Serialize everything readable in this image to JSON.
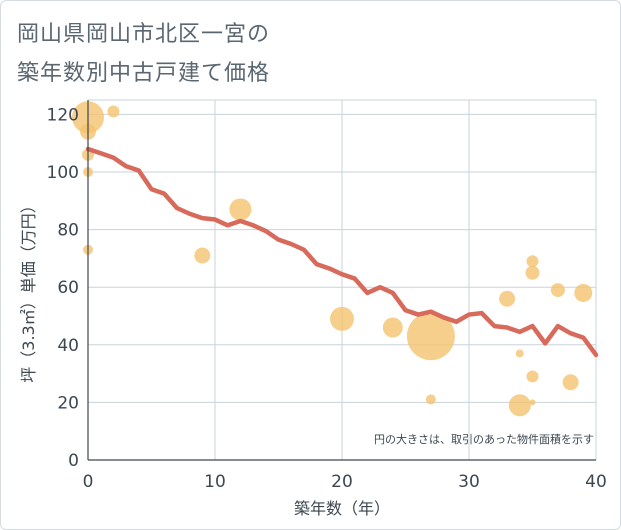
{
  "title_line1": "岡山県岡山市北区一宮の",
  "title_line2": "築年数別中古戸建て価格",
  "chart_data": {
    "type": "scatter",
    "xlabel": "築年数（年）",
    "ylabel": "坪（3.3㎡）単価（万円）",
    "xlim": [
      0,
      40
    ],
    "ylim": [
      0,
      125
    ],
    "xticks": [
      0,
      10,
      20,
      30,
      40
    ],
    "yticks": [
      0,
      20,
      40,
      60,
      80,
      100,
      120
    ],
    "grid": true,
    "note": "円の大きさは、取引のあった物件面積を示す",
    "bubbles": [
      {
        "x": 0,
        "y": 119,
        "r": 16
      },
      {
        "x": 0,
        "y": 114,
        "r": 8
      },
      {
        "x": 0,
        "y": 106,
        "r": 6
      },
      {
        "x": 0,
        "y": 100,
        "r": 5
      },
      {
        "x": 0,
        "y": 73,
        "r": 5
      },
      {
        "x": 2,
        "y": 121,
        "r": 6
      },
      {
        "x": 9,
        "y": 71,
        "r": 8
      },
      {
        "x": 12,
        "y": 87,
        "r": 11
      },
      {
        "x": 20,
        "y": 49,
        "r": 12
      },
      {
        "x": 24,
        "y": 46,
        "r": 10
      },
      {
        "x": 27,
        "y": 43,
        "r": 24
      },
      {
        "x": 27,
        "y": 21,
        "r": 5
      },
      {
        "x": 33,
        "y": 56,
        "r": 8
      },
      {
        "x": 34,
        "y": 37,
        "r": 4
      },
      {
        "x": 34,
        "y": 19,
        "r": 11
      },
      {
        "x": 35,
        "y": 69,
        "r": 6
      },
      {
        "x": 35,
        "y": 65,
        "r": 7
      },
      {
        "x": 35,
        "y": 29,
        "r": 6
      },
      {
        "x": 35,
        "y": 20,
        "r": 3
      },
      {
        "x": 37,
        "y": 59,
        "r": 7
      },
      {
        "x": 38,
        "y": 27,
        "r": 8
      },
      {
        "x": 39,
        "y": 58,
        "r": 9
      }
    ],
    "trend": {
      "x": [
        0,
        1,
        2,
        3,
        4,
        5,
        6,
        7,
        8,
        9,
        10,
        11,
        12,
        13,
        14,
        15,
        16,
        17,
        18,
        19,
        20,
        21,
        22,
        23,
        24,
        25,
        26,
        27,
        28,
        29,
        30,
        31,
        32,
        33,
        34,
        35,
        36,
        37,
        38,
        39,
        40
      ],
      "y": [
        108,
        106.5,
        105,
        102,
        100.5,
        94,
        92.5,
        87.5,
        85.5,
        84,
        83.5,
        81.5,
        83,
        81.5,
        79.5,
        76.5,
        75,
        73,
        68,
        66.5,
        64.5,
        63,
        58,
        60,
        58,
        52,
        50.5,
        51.5,
        49.5,
        48,
        50.5,
        51,
        46.5,
        46,
        44.5,
        46.5,
        40.5,
        46.5,
        44,
        42.5,
        36.5
      ]
    },
    "bubble_color": "#f5c26b",
    "trend_color": "#d86a5b"
  }
}
